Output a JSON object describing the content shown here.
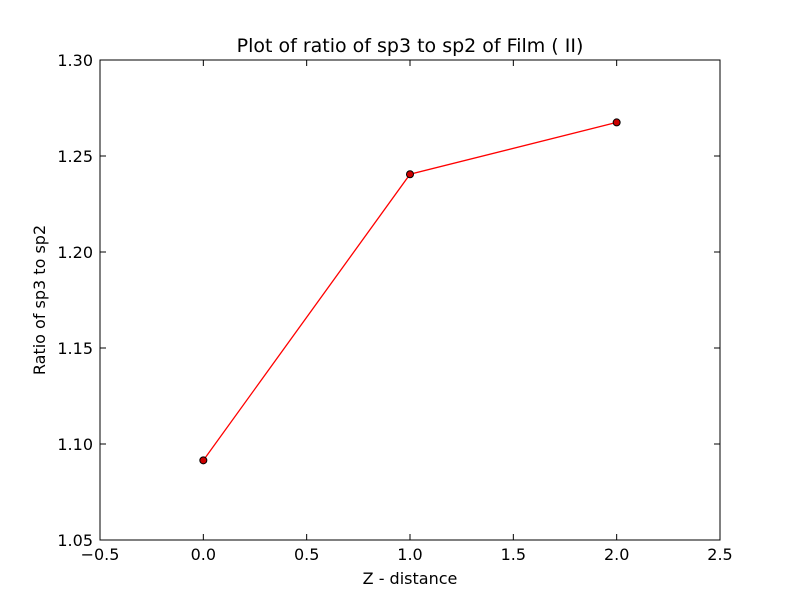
{
  "chart_data": {
    "type": "line",
    "title": "Plot of ratio of sp3 to sp2 of Film ( II)",
    "xlabel": "Z - distance",
    "ylabel": "Ratio of sp3 to sp2",
    "xlim": [
      -0.5,
      2.5
    ],
    "ylim": [
      1.05,
      1.3
    ],
    "xticks": [
      -0.5,
      0.0,
      0.5,
      1.0,
      1.5,
      2.0,
      2.5
    ],
    "yticks": [
      1.05,
      1.1,
      1.15,
      1.2,
      1.25,
      1.3
    ],
    "xtick_labels": [
      "−0.5",
      "0.0",
      "0.5",
      "1.0",
      "1.5",
      "2.0",
      "2.5"
    ],
    "ytick_labels": [
      "1.05",
      "1.10",
      "1.15",
      "1.20",
      "1.25",
      "1.30"
    ],
    "grid": false,
    "series": [
      {
        "x": [
          0.0,
          1.0,
          2.0
        ],
        "y": [
          1.0915,
          1.2405,
          1.2675
        ],
        "line_color": "#ff0000",
        "marker_color": "#cc0000",
        "marker_edge_color": "#000000"
      }
    ]
  }
}
